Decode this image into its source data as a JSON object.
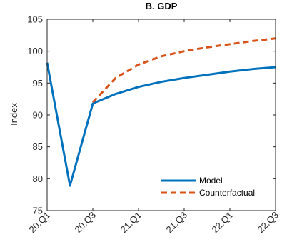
{
  "chart_data": {
    "type": "line",
    "title": "B. GDP",
    "xlabel": "",
    "ylabel": "Index",
    "ylim": [
      75,
      105
    ],
    "yticks": [
      75,
      80,
      85,
      90,
      95,
      100,
      105
    ],
    "x": [
      "20.Q1",
      "20.Q2",
      "20.Q3",
      "20.Q4",
      "21.Q1",
      "21.Q2",
      "21.Q3",
      "21.Q4",
      "22.Q1",
      "22.Q2",
      "22.Q3"
    ],
    "xtick_labels": [
      "20.Q1",
      "20.Q3",
      "21.Q1",
      "21.Q3",
      "22.Q1",
      "22.Q3"
    ],
    "grid": false,
    "legend_position": "lower-right",
    "series": [
      {
        "name": "Model",
        "color": "#0072BD",
        "style": "solid",
        "values": [
          98.2,
          78.9,
          91.8,
          93.3,
          94.4,
          95.2,
          95.8,
          96.3,
          96.8,
          97.2,
          97.5
        ]
      },
      {
        "name": "Counterfactual",
        "color": "#D95319",
        "style": "dashed",
        "values": [
          null,
          null,
          92.0,
          95.8,
          97.9,
          99.2,
          100.0,
          100.6,
          101.1,
          101.6,
          102.0
        ]
      }
    ]
  }
}
